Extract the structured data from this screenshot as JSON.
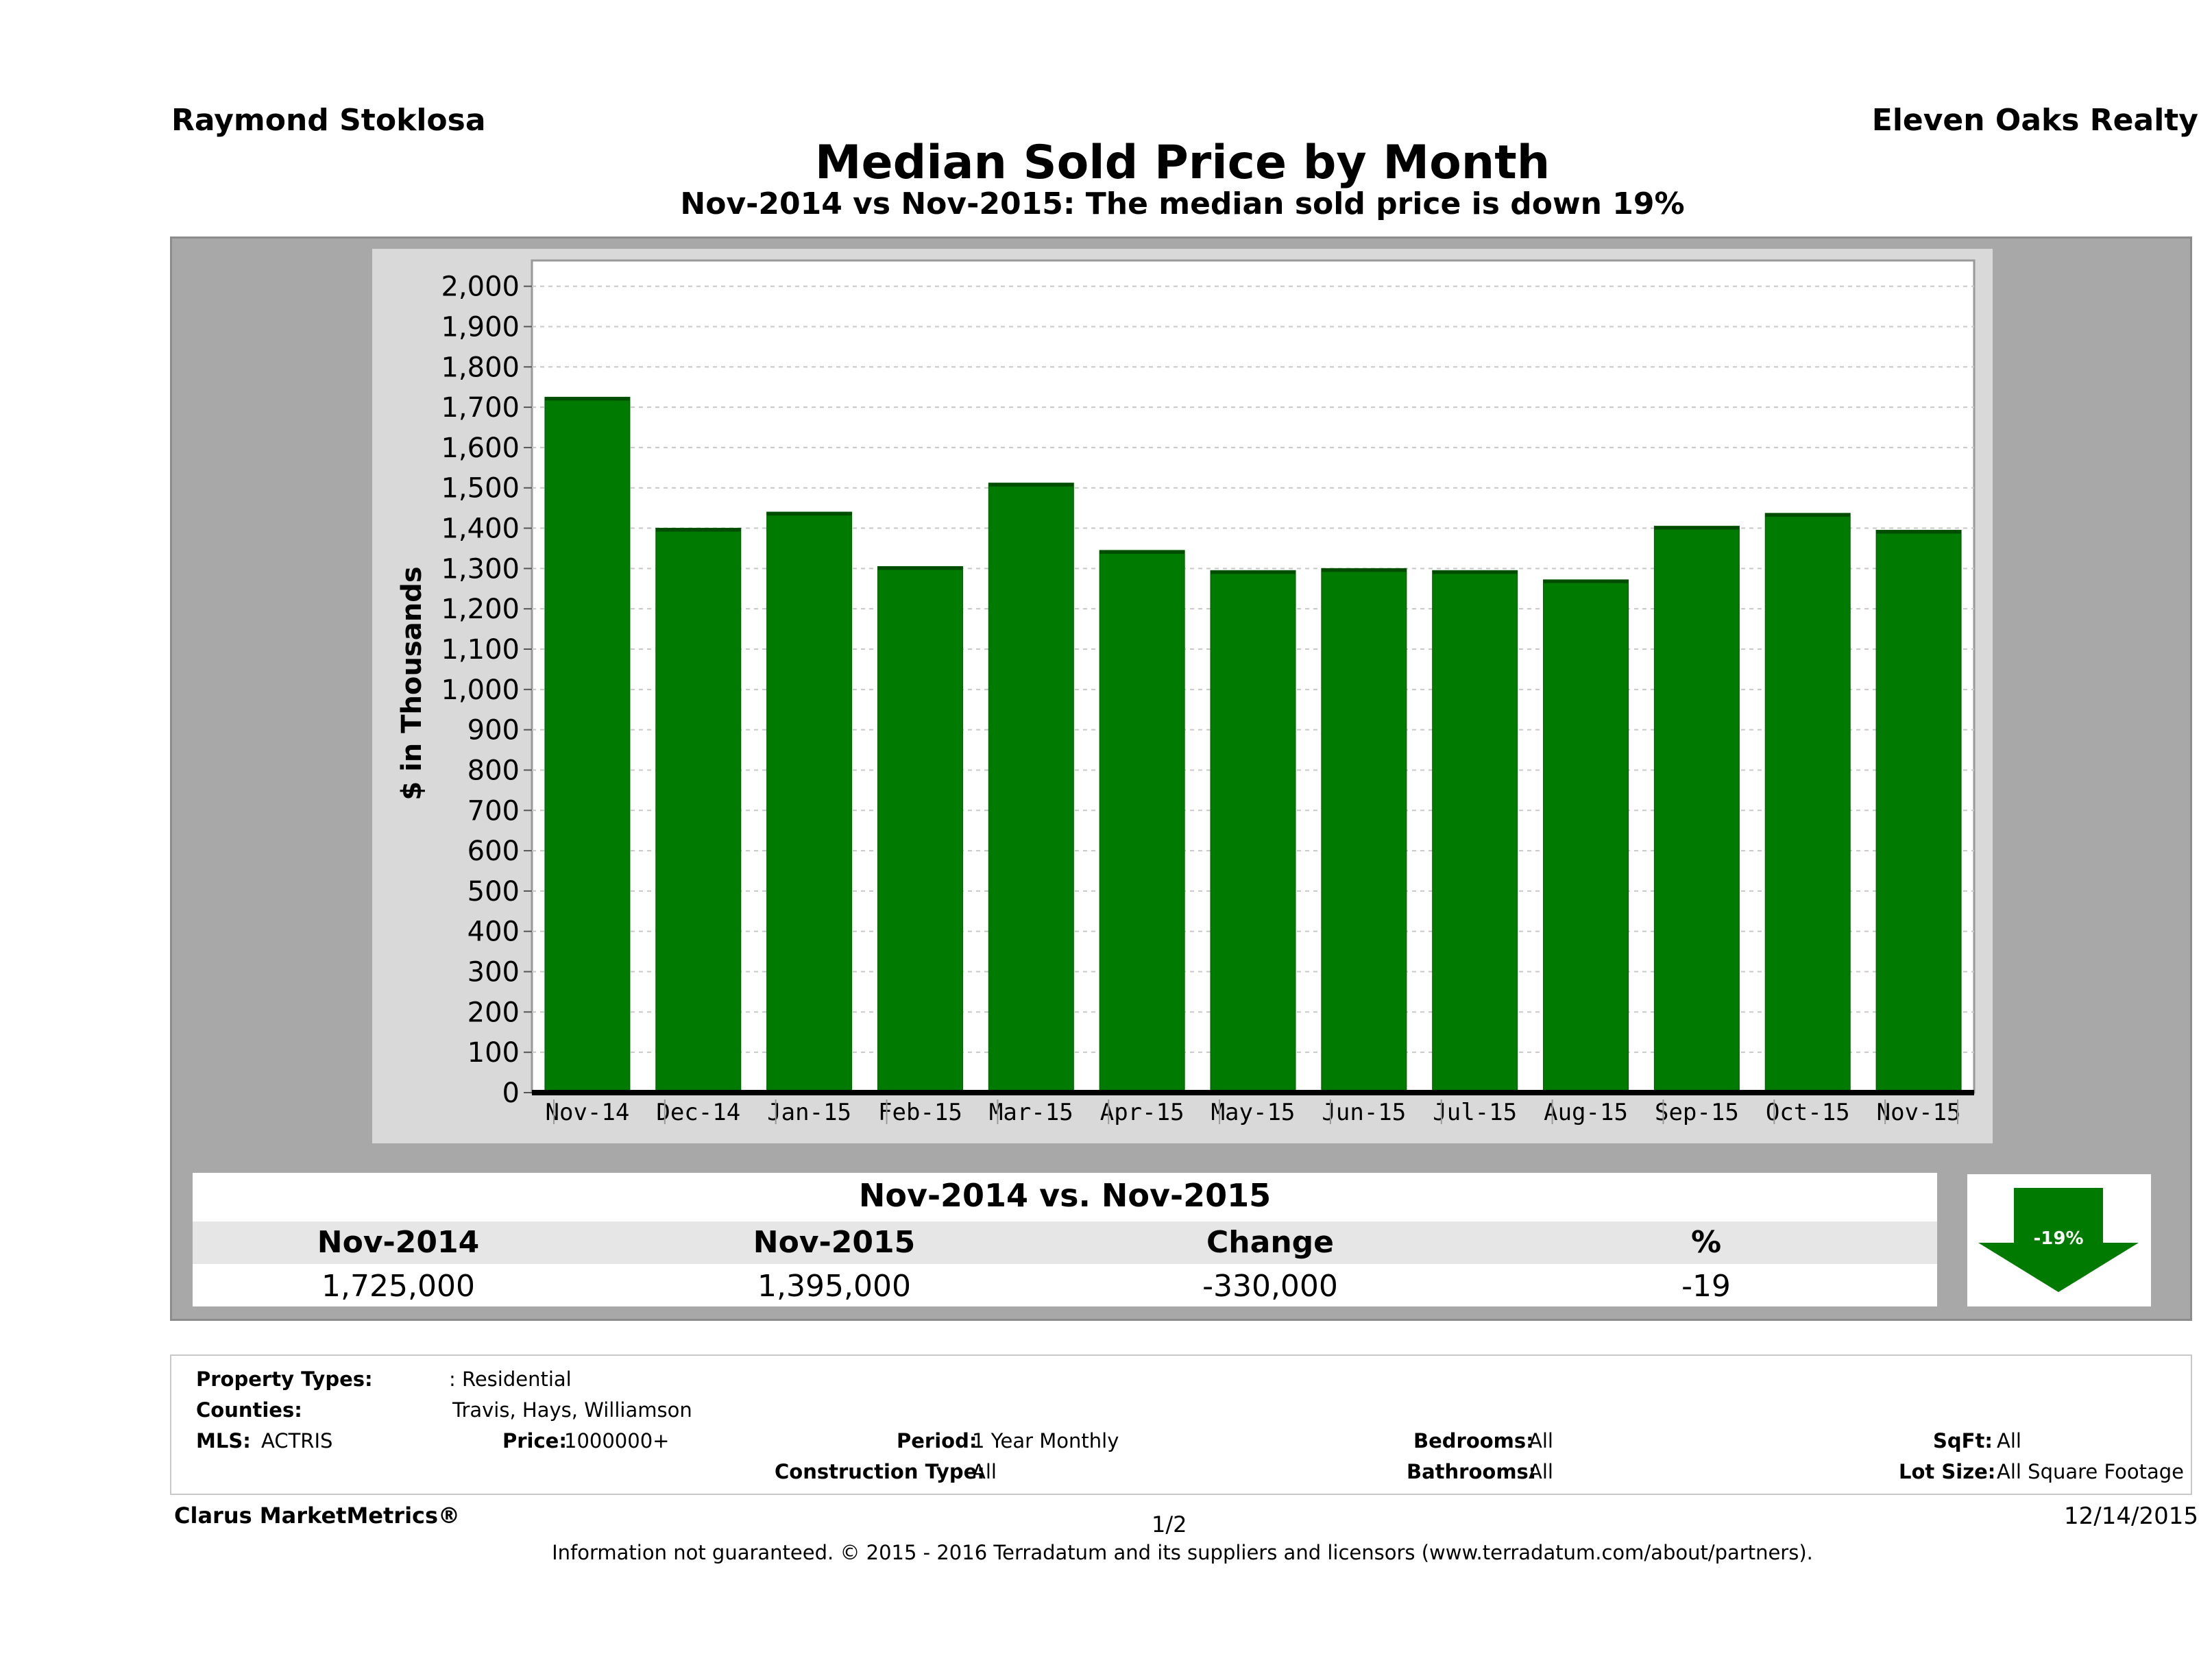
{
  "header": {
    "agent": "Raymond Stoklosa",
    "brokerage": "Eleven Oaks Realty",
    "title": "Median Sold Price by Month",
    "subtitle": "Nov-2014 vs Nov-2015: The median sold price is down 19%"
  },
  "chart_data": {
    "type": "bar",
    "title": "Median Sold Price by Month",
    "xlabel": "",
    "ylabel": "$ in Thousands",
    "categories": [
      "Nov-14",
      "Dec-14",
      "Jan-15",
      "Feb-15",
      "Mar-15",
      "Apr-15",
      "May-15",
      "Jun-15",
      "Jul-15",
      "Aug-15",
      "Sep-15",
      "Oct-15",
      "Nov-15"
    ],
    "values": [
      1725,
      1400,
      1440,
      1305,
      1512,
      1345,
      1295,
      1300,
      1295,
      1272,
      1405,
      1437,
      1395
    ],
    "ylim": [
      0,
      2000
    ],
    "yticks": [
      "0",
      "100",
      "200",
      "300",
      "400",
      "500",
      "600",
      "700",
      "800",
      "900",
      "1,000",
      "1,100",
      "1,200",
      "1,300",
      "1,400",
      "1,500",
      "1,600",
      "1,700",
      "1,800",
      "1,900",
      "2,000"
    ],
    "grid": true,
    "bar_color": "#007a00"
  },
  "comparison": {
    "title": "Nov-2014 vs. Nov-2015",
    "headers": [
      "Nov-2014",
      "Nov-2015",
      "Change",
      "%"
    ],
    "values": [
      "1,725,000",
      "1,395,000",
      "-330,000",
      "-19"
    ],
    "badge": "-19%",
    "badge_color": "#007a00"
  },
  "filters": {
    "property_types_label": "Property Types:",
    "property_types_value": ": Residential",
    "counties_label": "Counties:",
    "counties_value": "Travis, Hays, Williamson",
    "mls_label": "MLS:",
    "mls_value": "ACTRIS",
    "price_label": "Price:",
    "price_value": "1000000+",
    "period_label": "Period:",
    "period_value": "1 Year Monthly",
    "construction_label": "Construction Type:",
    "construction_value": "All",
    "bedrooms_label": "Bedrooms:",
    "bedrooms_value": "All",
    "bathrooms_label": "Bathrooms:",
    "bathrooms_value": "All",
    "sqft_label": "SqFt:",
    "sqft_value": "All",
    "lot_label": "Lot Size:",
    "lot_value": "All Square Footage"
  },
  "footer": {
    "brand": "Clarus MarketMetrics®",
    "page": "1/2",
    "date": "12/14/2015",
    "disclaimer": "Information not guaranteed. © 2015 - 2016 Terradatum and its suppliers and licensors (www.terradatum.com/about/partners)."
  }
}
